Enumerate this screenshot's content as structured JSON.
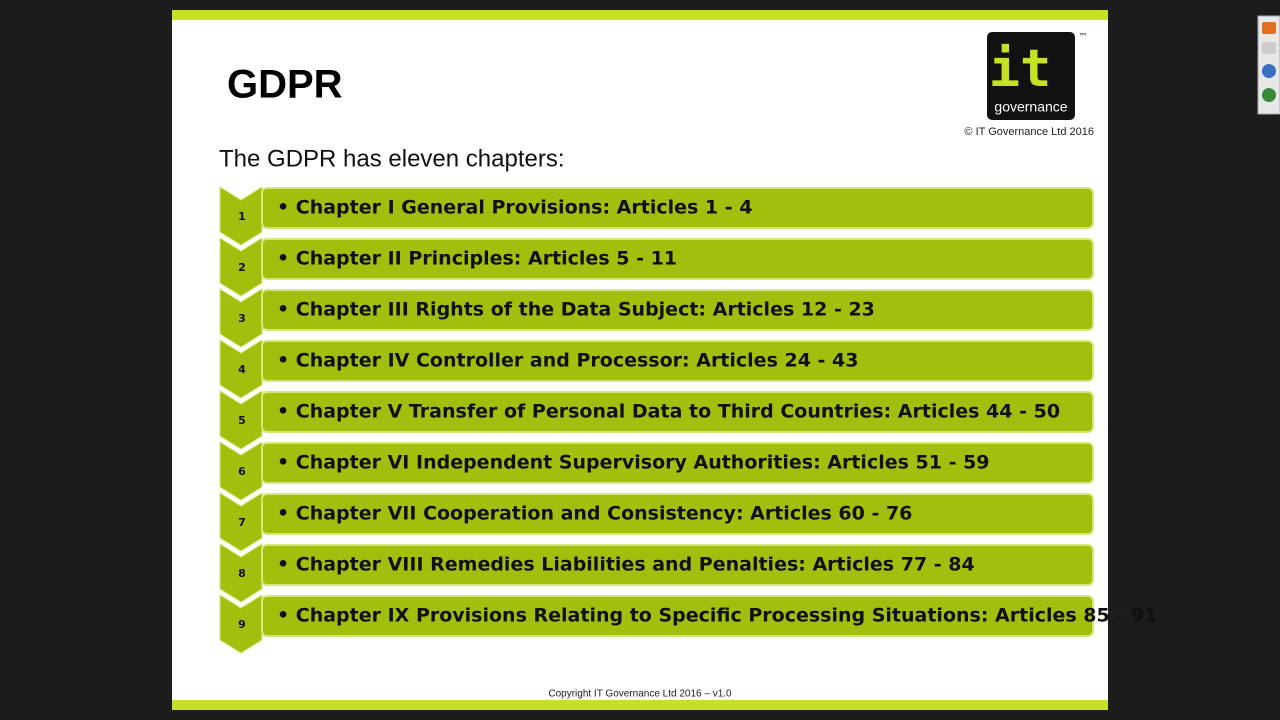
{
  "slide": {
    "title": "GDPR",
    "subtitle": "The GDPR has eleven chapters:",
    "logo": {
      "mark": "it",
      "word": "governance",
      "tm": "™"
    },
    "logo_copyright": "© IT Governance Ltd 2016",
    "items": [
      {
        "number": "1",
        "text": "• Chapter I General Provisions: Articles 1 - 4"
      },
      {
        "number": "2",
        "text": "• Chapter II Principles: Articles 5 - 11"
      },
      {
        "number": "3",
        "text": "• Chapter III Rights of the Data Subject: Articles 12 - 23"
      },
      {
        "number": "4",
        "text": "• Chapter IV Controller and Processor: Articles 24 - 43"
      },
      {
        "number": "5",
        "text": "• Chapter V Transfer of Personal Data to Third Countries: Articles 44 - 50"
      },
      {
        "number": "6",
        "text": "• Chapter VI Independent Supervisory Authorities: Articles 51 - 59"
      },
      {
        "number": "7",
        "text": "• Chapter VII Cooperation and Consistency: Articles 60 - 76"
      },
      {
        "number": "8",
        "text": "• Chapter VIII Remedies Liabilities and Penalties: Articles 77 - 84"
      },
      {
        "number": "9",
        "text": "• Chapter IX Provisions Relating to Specific Processing Situations: Articles 85 - 91"
      }
    ],
    "footer": "Copyright IT Governance Ltd 2016 – v1.0"
  }
}
